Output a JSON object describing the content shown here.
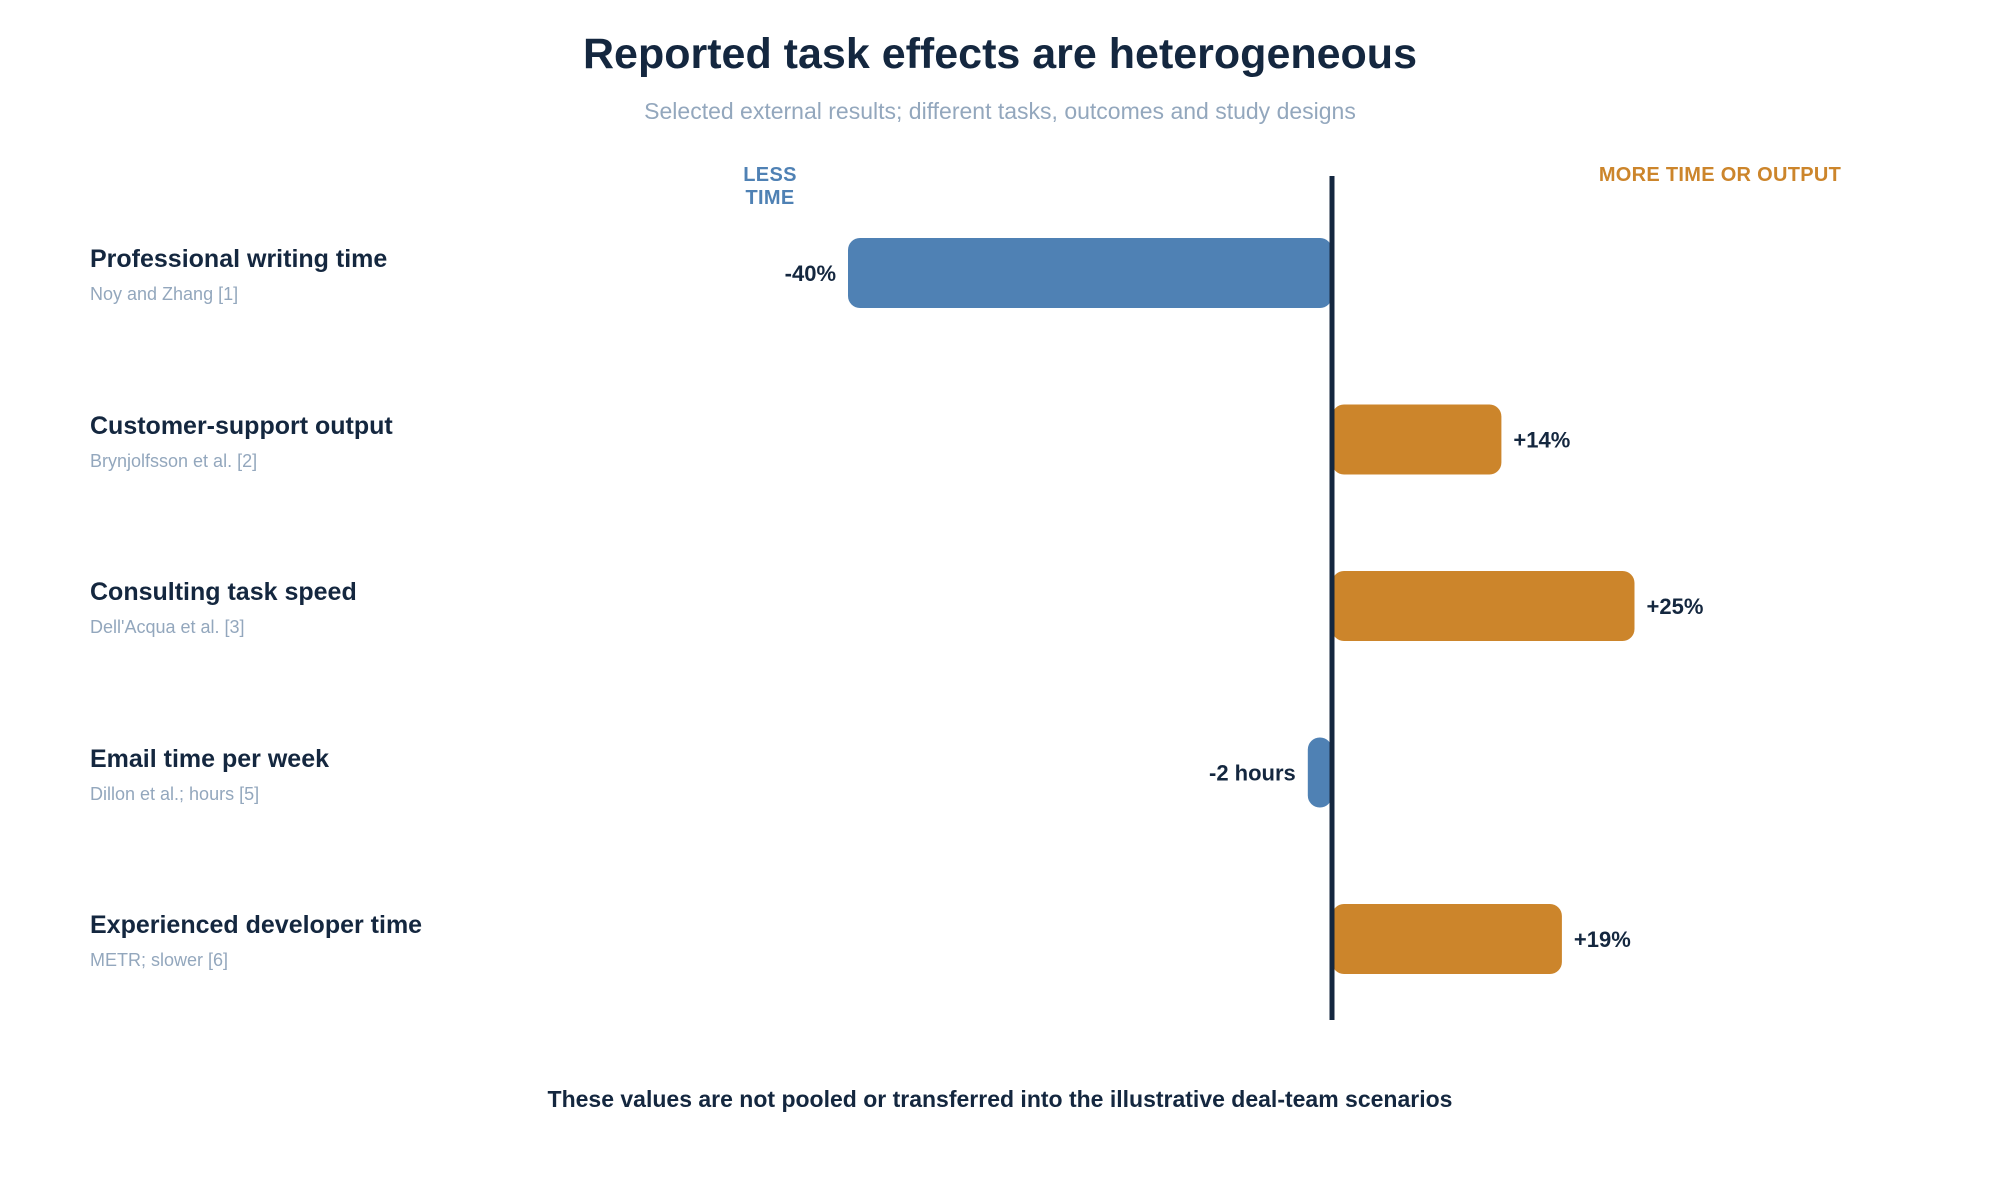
{
  "header": {
    "title": "Reported task effects are heterogeneous",
    "subtitle": "Selected external results; different tasks, outcomes and study designs"
  },
  "direction_labels": {
    "left": "LESS TIME",
    "right": "MORE TIME OR OUTPUT"
  },
  "colors": {
    "less": "#4f81b4",
    "more": "#cc852b",
    "axis": "#14273f",
    "text": "#14273f",
    "muted": "#93a7bd"
  },
  "chart_data": {
    "type": "bar",
    "orientation": "horizontal",
    "title": "Reported task effects are heterogeneous",
    "subtitle": "Selected external results; different tasks, outcomes and study designs",
    "categories": [
      "Professional writing time",
      "Customer-support output",
      "Consulting task speed",
      "Email time per week",
      "Experienced developer time"
    ],
    "sources": [
      "Noy and Zhang [1]",
      "Brynjolfsson et al. [2]",
      "Dell'Acqua et al. [3]",
      "Dillon et al.; hours [5]",
      "METR; slower [6]"
    ],
    "values": [
      -40,
      14,
      25,
      -2,
      19
    ],
    "value_labels": [
      "-40%",
      "+14%",
      "+25%",
      "-2 hours",
      "+19%"
    ],
    "series": [
      {
        "values": [
          -40,
          14,
          25,
          -2,
          19
        ]
      }
    ],
    "zero_line": true,
    "grid": false
  },
  "footer": {
    "note": "These values are not pooled or transferred into the illustrative deal-team scenarios"
  }
}
